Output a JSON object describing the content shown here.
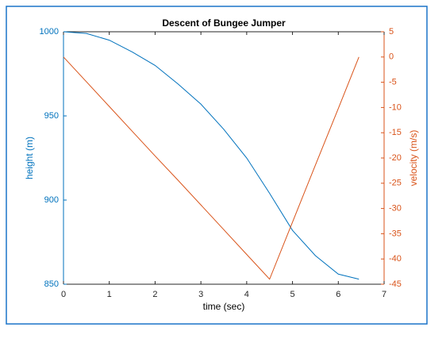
{
  "chart_data": {
    "type": "line",
    "title": "Descent of Bungee Jumper",
    "xlabel": "time (sec)",
    "ylabel": "height (m)",
    "y2label": "velocity (m/s)",
    "x": [
      0,
      0.5,
      1,
      1.5,
      2,
      2.5,
      3,
      3.5,
      4,
      4.5,
      5,
      5.5,
      6,
      6.45
    ],
    "series": [
      {
        "name": "height",
        "color": "#0072bd",
        "values": [
          1000,
          999,
          995,
          988,
          980,
          969,
          957,
          942,
          925,
          904,
          882,
          867,
          856,
          853
        ]
      },
      {
        "name": "velocity",
        "color": "#d95319",
        "axis": "y2",
        "values": [
          0,
          -4.9,
          -9.8,
          -14.7,
          -19.6,
          -24.4,
          -29.3,
          -34.2,
          -39.1,
          -44,
          -32.7,
          -21.4,
          -10.2,
          0
        ]
      }
    ],
    "xlim": [
      0,
      7
    ],
    "xticks": [
      0,
      1,
      2,
      3,
      4,
      5,
      6,
      7
    ],
    "ylim": [
      850,
      1000
    ],
    "yticks": [
      850,
      900,
      950,
      1000
    ],
    "y2lim": [
      -45,
      5
    ],
    "y2ticks": [
      -45,
      -40,
      -35,
      -30,
      -25,
      -20,
      -15,
      -10,
      -5,
      0,
      5
    ]
  }
}
